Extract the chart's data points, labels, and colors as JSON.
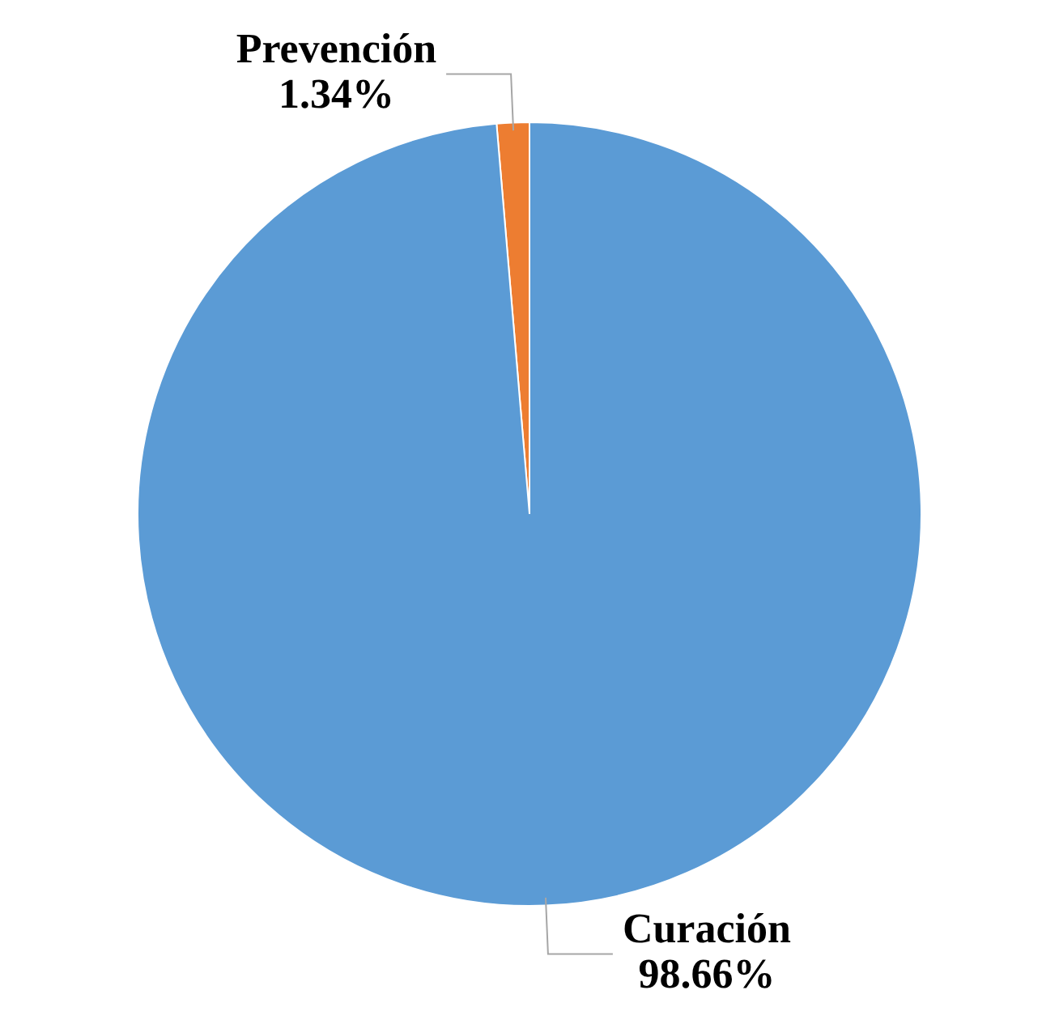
{
  "chart_data": {
    "type": "pie",
    "categories": [
      "Prevención",
      "Curación"
    ],
    "values": [
      1.34,
      98.66
    ],
    "colors": [
      "#ed7d31",
      "#5b9bd5"
    ],
    "value_labels": [
      "1.34%",
      "98.66%"
    ],
    "legend": false
  }
}
